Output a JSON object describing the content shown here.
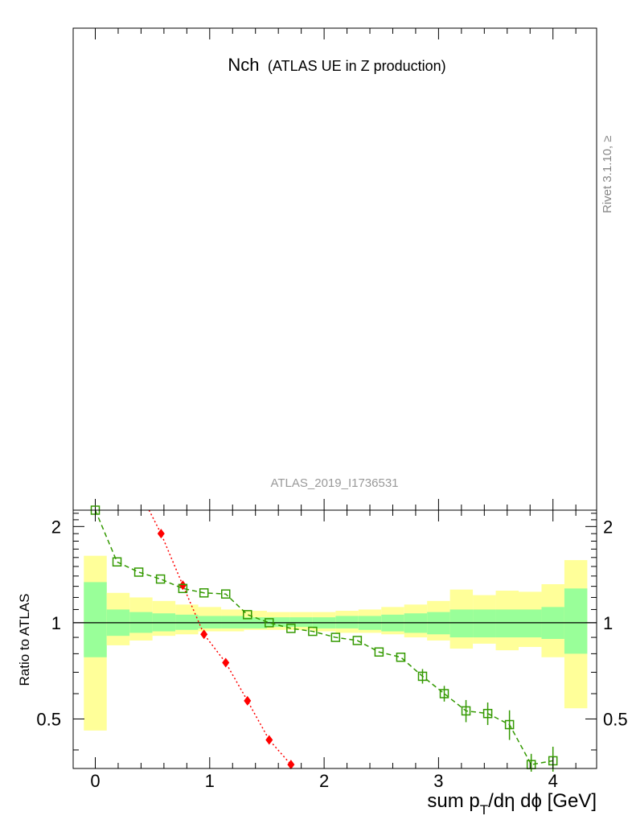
{
  "chart_data": {
    "type": "line",
    "title": "Nch",
    "subtitle": "(ATLAS UE in Z production)",
    "analysis_label": "ATLAS_2019_I1736531",
    "version_label": "Rivet 3.1.10, ≥",
    "ratio_ylabel": "Ratio to ATLAS",
    "xlabel_parts": {
      "pre": "sum p",
      "sub": "T",
      "post": "/dη dϕ [GeV]"
    },
    "xlim": [
      -0.2,
      4.4
    ],
    "ratio_ylim": [
      0.35,
      2.25
    ],
    "ratio_scale": "log",
    "x_ticks": [
      "0",
      "1",
      "2",
      "3",
      "4"
    ],
    "y_ticks": [
      "0.5",
      "1",
      "2"
    ],
    "reference_line": 1.0,
    "uncertainty_bands": {
      "bin_edges": [
        -0.1,
        0.1,
        0.3,
        0.5,
        0.7,
        0.9,
        1.1,
        1.3,
        1.5,
        1.7,
        1.9,
        2.1,
        2.3,
        2.5,
        2.7,
        2.9,
        3.1,
        3.3,
        3.5,
        3.7,
        3.9,
        4.1,
        4.3
      ],
      "inner_low": [
        0.78,
        0.91,
        0.93,
        0.94,
        0.95,
        0.96,
        0.96,
        0.96,
        0.97,
        0.97,
        0.96,
        0.96,
        0.95,
        0.94,
        0.93,
        0.92,
        0.9,
        0.9,
        0.9,
        0.9,
        0.89,
        0.8
      ],
      "inner_high": [
        1.34,
        1.1,
        1.08,
        1.07,
        1.06,
        1.05,
        1.05,
        1.04,
        1.04,
        1.04,
        1.04,
        1.05,
        1.05,
        1.06,
        1.07,
        1.08,
        1.1,
        1.1,
        1.1,
        1.1,
        1.12,
        1.28
      ],
      "outer_low": [
        0.46,
        0.85,
        0.88,
        0.91,
        0.92,
        0.94,
        0.94,
        0.95,
        0.95,
        0.95,
        0.94,
        0.93,
        0.93,
        0.92,
        0.9,
        0.88,
        0.83,
        0.86,
        0.82,
        0.84,
        0.78,
        0.54
      ],
      "outer_high": [
        1.62,
        1.24,
        1.2,
        1.17,
        1.14,
        1.12,
        1.1,
        1.09,
        1.08,
        1.08,
        1.08,
        1.09,
        1.1,
        1.12,
        1.14,
        1.17,
        1.27,
        1.22,
        1.26,
        1.25,
        1.32,
        1.57
      ],
      "inner_color": "#99ff99",
      "outer_color": "#ffff99"
    },
    "series": [
      {
        "color": "#ff0000",
        "marker": "filled-diamond",
        "linestyle": "dotted",
        "x": [
          0.47,
          0.575,
          0.765,
          0.95,
          1.14,
          1.33,
          1.52,
          1.71
        ],
        "y": [
          2.25,
          1.9,
          1.31,
          0.92,
          0.75,
          0.57,
          0.43,
          0.36
        ]
      },
      {
        "color": "#339900",
        "marker": "open-square",
        "linestyle": "dashed",
        "x": [
          0.0,
          0.19,
          0.38,
          0.57,
          0.765,
          0.95,
          1.14,
          1.33,
          1.52,
          1.71,
          1.9,
          2.1,
          2.29,
          2.48,
          2.67,
          2.86,
          3.05,
          3.24,
          3.43,
          3.62,
          3.81,
          4.0
        ],
        "y": [
          2.25,
          1.55,
          1.44,
          1.37,
          1.28,
          1.24,
          1.23,
          1.06,
          1.0,
          0.96,
          0.94,
          0.9,
          0.88,
          0.81,
          0.78,
          0.68,
          0.6,
          0.53,
          0.52,
          0.48,
          0.36,
          0.37
        ],
        "err": [
          0.0,
          0.0,
          0.0,
          0.0,
          0.0,
          0.0,
          0.0,
          0.0,
          0.0,
          0.0,
          0.0,
          0.0,
          0.0,
          0.0,
          0.0,
          0.02,
          0.02,
          0.03,
          0.03,
          0.04,
          0.02,
          0.03
        ]
      }
    ]
  }
}
